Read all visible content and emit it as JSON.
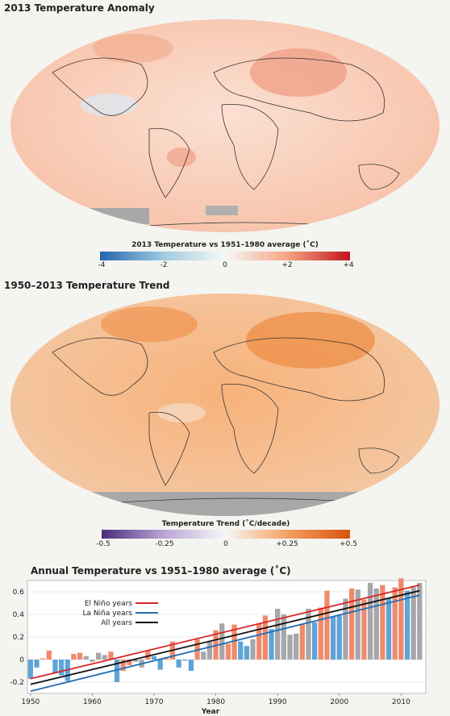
{
  "maps": [
    {
      "title": "2013 Temperature Anomaly",
      "colorbar_label": "2013 Temperature vs 1951–1980 average (˚C)",
      "ticks": [
        "-4",
        "-2",
        "0",
        "+2",
        "+4"
      ],
      "colors": [
        "#2166ac",
        "#9ecae1",
        "#f7f7f7",
        "#f4a582",
        "#c4121a"
      ]
    },
    {
      "title": "1950–2013 Temperature Trend",
      "colorbar_label": "Temperature Trend (˚C/decade)",
      "ticks": [
        "-0.5",
        "-0.25",
        "0",
        "+0.25",
        "+0.5"
      ],
      "colors": [
        "#4a2b7a",
        "#b9a6d6",
        "#f7f7f7",
        "#f4a060",
        "#d9520e"
      ]
    }
  ],
  "chart_data": {
    "type": "bar",
    "title": "Annual Temperature vs 1951–1980 average (˚C)",
    "xlabel": "Year",
    "ylabel": "",
    "x": [
      1950,
      1951,
      1952,
      1953,
      1954,
      1955,
      1956,
      1957,
      1958,
      1959,
      1960,
      1961,
      1962,
      1963,
      1964,
      1965,
      1966,
      1967,
      1968,
      1969,
      1970,
      1971,
      1972,
      1973,
      1974,
      1975,
      1976,
      1977,
      1978,
      1979,
      1980,
      1981,
      1982,
      1983,
      1984,
      1985,
      1986,
      1987,
      1988,
      1989,
      1990,
      1991,
      1992,
      1993,
      1994,
      1995,
      1996,
      1997,
      1998,
      1999,
      2000,
      2001,
      2002,
      2003,
      2004,
      2005,
      2006,
      2007,
      2008,
      2009,
      2010,
      2011,
      2012,
      2013
    ],
    "values": [
      -0.17,
      -0.07,
      0.01,
      0.08,
      -0.12,
      -0.14,
      -0.19,
      0.05,
      0.06,
      0.03,
      -0.02,
      0.06,
      0.04,
      0.07,
      -0.2,
      -0.1,
      -0.05,
      -0.02,
      -0.07,
      0.08,
      0.03,
      -0.09,
      0.01,
      0.16,
      -0.07,
      -0.01,
      -0.1,
      0.18,
      0.07,
      0.16,
      0.26,
      0.32,
      0.14,
      0.31,
      0.16,
      0.12,
      0.18,
      0.32,
      0.39,
      0.27,
      0.45,
      0.4,
      0.22,
      0.23,
      0.31,
      0.45,
      0.33,
      0.46,
      0.61,
      0.38,
      0.39,
      0.54,
      0.63,
      0.62,
      0.53,
      0.68,
      0.63,
      0.66,
      0.54,
      0.64,
      0.72,
      0.61,
      0.64,
      0.68
    ],
    "phases": [
      "la",
      "la",
      "el",
      "el",
      "la",
      "la",
      "la",
      "el",
      "el",
      "n",
      "n",
      "n",
      "n",
      "el",
      "la",
      "el",
      "el",
      "n",
      "n",
      "el",
      "la",
      "la",
      "el",
      "el",
      "la",
      "la",
      "la",
      "el",
      "n",
      "n",
      "el",
      "n",
      "el",
      "el",
      "la",
      "la",
      "n",
      "el",
      "el",
      "la",
      "n",
      "n",
      "n",
      "n",
      "el",
      "n",
      "la",
      "el",
      "el",
      "la",
      "la",
      "n",
      "el",
      "n",
      "el",
      "n",
      "n",
      "el",
      "la",
      "el",
      "el",
      "la",
      "n",
      "n"
    ],
    "ylim": [
      -0.3,
      0.7
    ],
    "yticks": [
      "-0.2",
      "0",
      "0.2",
      "0.4",
      "0.6"
    ],
    "ytick_values": [
      -0.2,
      0,
      0.2,
      0.4,
      0.6
    ],
    "xticks": [
      "1950",
      "1960",
      "1970",
      "1980",
      "1990",
      "2000",
      "2010"
    ],
    "xtick_values": [
      1950,
      1960,
      1970,
      1980,
      1990,
      2000,
      2010
    ],
    "trend_lines": [
      {
        "name": "El Niño years",
        "color": "#d62728",
        "start": [
          1950,
          -0.17
        ],
        "end": [
          2013,
          0.66
        ]
      },
      {
        "name": "La Niña years",
        "color": "#1f6fb4",
        "start": [
          1950,
          -0.28
        ],
        "end": [
          2013,
          0.57
        ]
      },
      {
        "name": "All years",
        "color": "#111111",
        "start": [
          1950,
          -0.22
        ],
        "end": [
          2013,
          0.61
        ]
      }
    ],
    "colors": {
      "el": "#f08a6c",
      "la": "#5fa4d6",
      "n": "#a7a7ab"
    }
  }
}
